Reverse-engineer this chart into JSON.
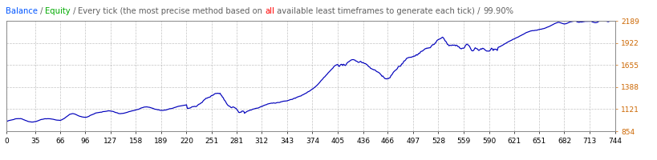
{
  "title_parts": [
    {
      "text": "Balance",
      "color": "#0055FF"
    },
    {
      "text": " / ",
      "color": "#606060"
    },
    {
      "text": "Equity",
      "color": "#00AA00"
    },
    {
      "text": " / ",
      "color": "#606060"
    },
    {
      "text": "Every tick (the most precise method based on ",
      "color": "#606060"
    },
    {
      "text": "all",
      "color": "#FF0000"
    },
    {
      "text": " available least timeframes to generate each tick)",
      "color": "#606060"
    },
    {
      "text": " / ",
      "color": "#606060"
    },
    {
      "text": "99.90%",
      "color": "#606060"
    }
  ],
  "x_ticks": [
    0,
    35,
    66,
    96,
    127,
    158,
    189,
    220,
    251,
    281,
    312,
    343,
    374,
    405,
    436,
    466,
    497,
    528,
    559,
    590,
    621,
    651,
    682,
    713,
    744
  ],
  "y_ticks": [
    854,
    1121,
    1388,
    1655,
    1922,
    2189
  ],
  "x_min": 0,
  "x_max": 744,
  "y_min": 854,
  "y_max": 2189,
  "line_color": "#0000BB",
  "background_color": "#FFFFFF",
  "grid_color": "#AAAAAA",
  "border_color": "#888888",
  "title_fontsize": 7.2,
  "tick_fontsize": 6.5
}
